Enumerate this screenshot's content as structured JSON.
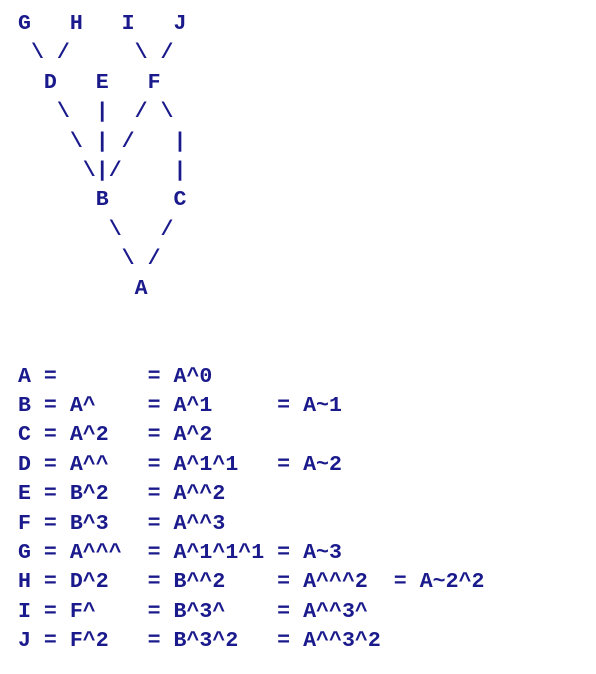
{
  "colors": {
    "text": "#1a1a8c",
    "background": "#ffffff"
  },
  "diagram_lines": [
    "G   H   I   J",
    " \\ /     \\ /",
    "  D   E   F",
    "   \\  |  / \\",
    "    \\ | /   |",
    "     \\|/    |",
    "      B     C",
    "       \\   /",
    "        \\ /",
    "         A"
  ],
  "spacer": "",
  "rows": [
    "A =       = A^0",
    "B = A^    = A^1     = A~1",
    "C = A^2   = A^2",
    "D = A^^   = A^1^1   = A~2",
    "E = B^2   = A^^2",
    "F = B^3   = A^^3",
    "G = A^^^  = A^1^1^1 = A~3",
    "H = D^2   = B^^2    = A^^^2  = A~2^2",
    "I = F^    = B^3^    = A^^3^",
    "J = F^2   = B^3^2   = A^^3^2"
  ]
}
